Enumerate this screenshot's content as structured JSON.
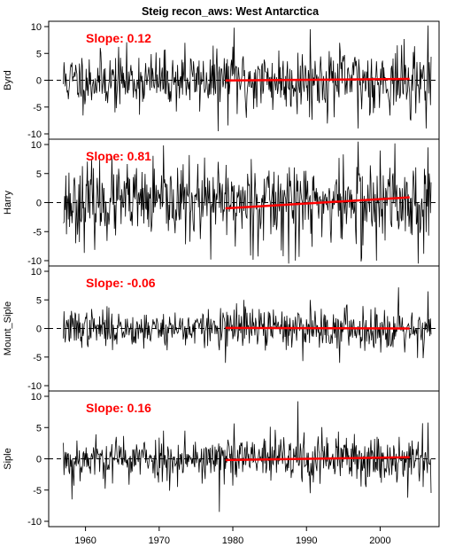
{
  "chart_data": {
    "type": "line",
    "title": "Steig recon_aws: West Antarctica",
    "xlim": [
      1955,
      2008
    ],
    "xticks": [
      1960,
      1970,
      1980,
      1990,
      2000
    ],
    "xtick_labels": [
      "1960",
      "1970",
      "1980",
      "1990",
      "2000"
    ],
    "line_color": "#000000",
    "trend_color": "#ff0000",
    "slope_color": "#ff0000",
    "zero_line": "dashed",
    "panels": [
      {
        "ylabel": "Byrd",
        "ylim": [
          -10,
          10
        ],
        "yticks": [
          -10,
          -5,
          0,
          5,
          10
        ],
        "ytick_labels": [
          "-10",
          "-5",
          "0",
          "5",
          "10"
        ],
        "slope_label": "Slope:  0.12",
        "trend": {
          "x": [
            1979,
            2004
          ],
          "y": [
            -0.05,
            0.25
          ]
        },
        "series": {
          "x0": 1957,
          "x1": 2006.9,
          "amp": 2.6,
          "seed": 11,
          "spikes": [
            [
              1980.2,
              9.8
            ],
            [
              1981.8,
              -7
            ],
            [
              1990.5,
              9.5
            ],
            [
              1997,
              -9
            ],
            [
              2004.2,
              -7.5
            ],
            [
              2006.5,
              10.2
            ],
            [
              1978,
              -9.5
            ],
            [
              1973.5,
              7
            ],
            [
              1964,
              -6
            ]
          ]
        }
      },
      {
        "ylabel": "Harry",
        "ylim": [
          -10,
          10
        ],
        "yticks": [
          -10,
          -5,
          0,
          5,
          10
        ],
        "ytick_labels": [
          "-10",
          "-5",
          "0",
          "5",
          "10"
        ],
        "slope_label": "Slope:  0.81",
        "trend": {
          "x": [
            1979,
            2004
          ],
          "y": [
            -1.0,
            0.9
          ]
        },
        "series": {
          "x0": 1957,
          "x1": 2006.9,
          "amp": 3.2,
          "seed": 23,
          "spikes": [
            [
              1997,
              10.5
            ],
            [
              2002,
              10.2
            ],
            [
              1977,
              -9.8
            ],
            [
              1997.5,
              -9.5
            ],
            [
              1999.5,
              -10
            ],
            [
              1988.5,
              -10
            ],
            [
              1982.5,
              7.5
            ],
            [
              2006.5,
              9.5
            ],
            [
              1972.5,
              6
            ]
          ]
        }
      },
      {
        "ylabel": "Mount_Siple",
        "ylim": [
          -10,
          10
        ],
        "yticks": [
          -10,
          -5,
          0,
          5,
          10
        ],
        "ytick_labels": [
          "-10",
          "-5",
          "0",
          "5",
          "10"
        ],
        "slope_label": "Slope:  -0.06",
        "trend": {
          "x": [
            1979,
            2004
          ],
          "y": [
            0.1,
            0.0
          ]
        },
        "series": {
          "x0": 1957,
          "x1": 2006.9,
          "amp": 1.6,
          "seed": 37,
          "spikes": [
            [
              2002.5,
              7.2
            ],
            [
              1979,
              -6
            ],
            [
              1994.5,
              -6
            ],
            [
              2006.5,
              6.5
            ],
            [
              2005.8,
              -5.2
            ],
            [
              1981.5,
              5
            ],
            [
              1990.5,
              5
            ]
          ]
        }
      },
      {
        "ylabel": "Siple",
        "ylim": [
          -10,
          10
        ],
        "yticks": [
          -10,
          -5,
          0,
          5,
          10
        ],
        "ytick_labels": [
          "-10",
          "-5",
          "0",
          "5",
          "10"
        ],
        "slope_label": "Slope:  0.16",
        "trend": {
          "x": [
            1979,
            2004
          ],
          "y": [
            -0.2,
            0.25
          ]
        },
        "series": {
          "x0": 1957,
          "x1": 2006.9,
          "amp": 1.8,
          "seed": 53,
          "spikes": [
            [
              1988.8,
              9.2
            ],
            [
              1978.2,
              -8.5
            ],
            [
              1958.2,
              -6.5
            ],
            [
              2006.5,
              5.8
            ],
            [
              1973.5,
              4.5
            ],
            [
              1990.5,
              -5.5
            ],
            [
              2005.8,
              -4.5
            ]
          ]
        }
      }
    ]
  }
}
